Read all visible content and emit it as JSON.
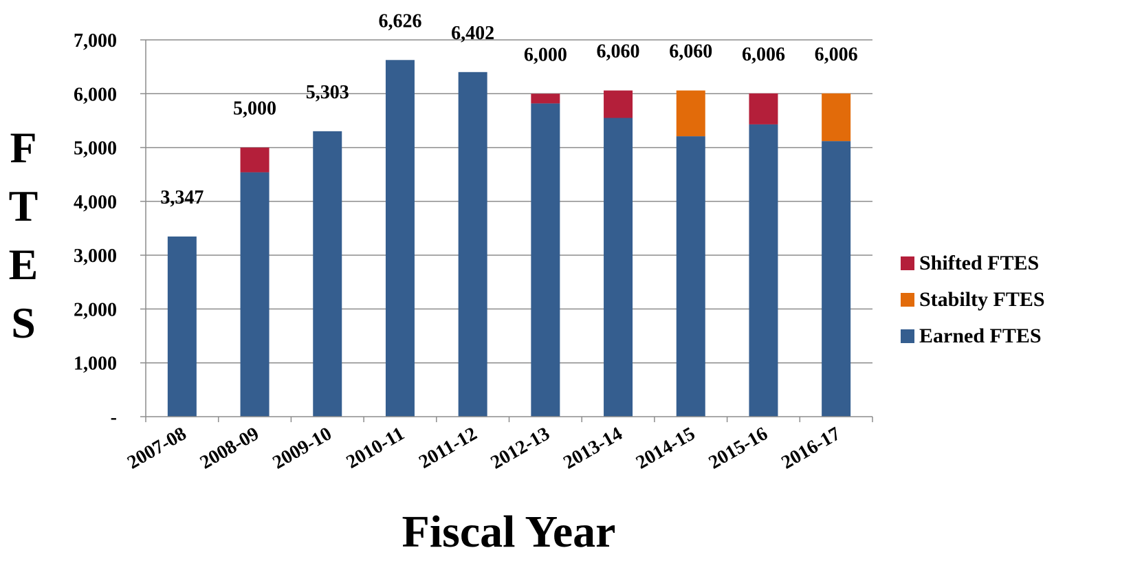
{
  "chart_data": {
    "type": "bar",
    "stacked": true,
    "xlabel": "Fiscal Year",
    "ylabel": "FTES",
    "categories": [
      "2007-08",
      "2008-09",
      "2009-10",
      "2010-11",
      "2011-12",
      "2012-13",
      "2013-14",
      "2014-15",
      "2015-16",
      "2016-17"
    ],
    "series": [
      {
        "name": "Earned FTES",
        "color": "#355E8F",
        "values": [
          3347,
          4540,
          5303,
          6626,
          6402,
          5820,
          5550,
          5210,
          5430,
          5120
        ]
      },
      {
        "name": "Stabilty FTES",
        "color": "#E26B0A",
        "values": [
          0,
          0,
          0,
          0,
          0,
          0,
          0,
          850,
          0,
          886
        ]
      },
      {
        "name": "Shifted FTES",
        "color": "#B41F3A",
        "values": [
          0,
          460,
          0,
          0,
          0,
          180,
          510,
          0,
          576,
          0
        ]
      }
    ],
    "totals_labels": [
      "3,347",
      "5,000",
      "5,303",
      "6,626",
      "6,402",
      "6,000",
      "6,060",
      "6,060",
      "6,006",
      "6,006"
    ],
    "totals": [
      3347,
      5000,
      5303,
      6626,
      6402,
      6000,
      6060,
      6060,
      6006,
      6006
    ],
    "ylim": [
      0,
      7000
    ],
    "yticks": [
      0,
      1000,
      2000,
      3000,
      4000,
      5000,
      6000,
      7000
    ],
    "ytick_labels": [
      "-",
      "1,000",
      "2,000",
      "3,000",
      "4,000",
      "5,000",
      "6,000",
      "7,000"
    ],
    "grid": true,
    "legend_position": "right",
    "legend_order": [
      "Shifted FTES",
      "Stabilty FTES",
      "Earned FTES"
    ]
  }
}
